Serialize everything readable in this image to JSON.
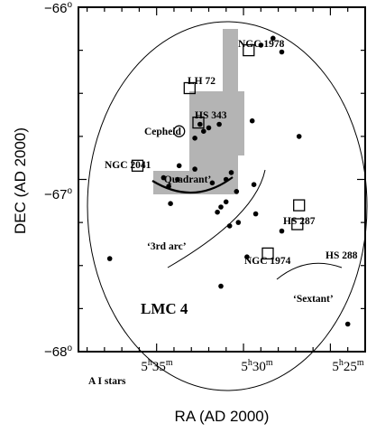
{
  "chart_data": {
    "type": "scatter",
    "title": "",
    "xlabel": "RA (AD 2000)",
    "ylabel": "DEC (AD 2000)",
    "xlim": [
      5.6583,
      5.3833
    ],
    "ylim": [
      -68.0,
      -66.0
    ],
    "x_ticks": [
      {
        "value": 5.5833,
        "label_main": "5",
        "label_sup1": "h",
        "label_mid": "35",
        "label_sup2": "m"
      },
      {
        "value": 5.5,
        "label_main": "5",
        "label_sup1": "h",
        "label_mid": "30",
        "label_sup2": "m"
      },
      {
        "value": 5.4167,
        "label_main": "5",
        "label_sup1": "h",
        "label_mid": "25",
        "label_sup2": "m"
      }
    ],
    "y_ticks": [
      {
        "value": -66.0,
        "label": "−66",
        "sup": "o"
      },
      {
        "value": -67.0,
        "label": "−67",
        "sup": "o"
      },
      {
        "value": -68.0,
        "label": "−68",
        "sup": "o"
      }
    ],
    "series": [
      {
        "name": "A I stars",
        "marker": "filled-circle",
        "points": [
          {
            "x": 5.4717,
            "y": -66.18
          },
          {
            "x": 5.4833,
            "y": -66.22
          },
          {
            "x": 5.4633,
            "y": -66.26
          },
          {
            "x": 5.5417,
            "y": -66.68
          },
          {
            "x": 5.5333,
            "y": -66.7
          },
          {
            "x": 5.5233,
            "y": -66.68
          },
          {
            "x": 5.5383,
            "y": -66.72
          },
          {
            "x": 5.5467,
            "y": -66.76
          },
          {
            "x": 5.4917,
            "y": -66.66
          },
          {
            "x": 5.4467,
            "y": -66.75
          },
          {
            "x": 5.5617,
            "y": -66.92
          },
          {
            "x": 5.5467,
            "y": -66.94
          },
          {
            "x": 5.5767,
            "y": -66.99
          },
          {
            "x": 5.5717,
            "y": -67.04
          },
          {
            "x": 5.5633,
            "y": -67.0
          },
          {
            "x": 5.53,
            "y": -67.02
          },
          {
            "x": 5.5167,
            "y": -67.0
          },
          {
            "x": 5.5117,
            "y": -66.96
          },
          {
            "x": 5.5067,
            "y": -67.07
          },
          {
            "x": 5.5167,
            "y": -67.13
          },
          {
            "x": 5.5217,
            "y": -67.16
          },
          {
            "x": 5.525,
            "y": -67.19
          },
          {
            "x": 5.57,
            "y": -67.14
          },
          {
            "x": 5.4883,
            "y": -67.2
          },
          {
            "x": 5.505,
            "y": -67.25
          },
          {
            "x": 5.5133,
            "y": -67.27
          },
          {
            "x": 5.49,
            "y": -67.03
          },
          {
            "x": 5.4633,
            "y": -67.3
          },
          {
            "x": 5.6283,
            "y": -67.46
          },
          {
            "x": 5.4967,
            "y": -67.45
          },
          {
            "x": 5.5217,
            "y": -67.62
          },
          {
            "x": 5.4,
            "y": -67.84
          }
        ]
      }
    ],
    "objects": [
      {
        "label": "NGC 1978",
        "x": 5.495,
        "y": -66.25,
        "marker": "open-square"
      },
      {
        "label": "LH 72",
        "x": 5.5517,
        "y": -66.47,
        "marker": "open-square"
      },
      {
        "label": "HS 343",
        "x": 5.5433,
        "y": -66.67,
        "marker": "open-square"
      },
      {
        "label": "Cepheid",
        "x": 5.5617,
        "y": -66.72,
        "marker": "open-circle"
      },
      {
        "label": "NGC 2041",
        "x": 5.6017,
        "y": -66.92,
        "marker": "open-square"
      },
      {
        "label": "HS 287",
        "x": 5.4467,
        "y": -67.15,
        "marker": "open-square"
      },
      {
        "label": "HS 288",
        "x": 5.4483,
        "y": -67.26,
        "marker": "open-square"
      },
      {
        "label": "NGC 1974",
        "x": 5.4767,
        "y": -67.43,
        "marker": "open-square"
      }
    ],
    "annotations": {
      "region_name": "LMC 4",
      "stars_label": "A I stars",
      "arc_quadrant": "‘Quadrant’",
      "arc_3rd": "‘3rd arc’",
      "arc_sextant": "‘Sextant’"
    },
    "shaded_region_color": "#b4b4b4",
    "grid": false,
    "legend": "none"
  }
}
